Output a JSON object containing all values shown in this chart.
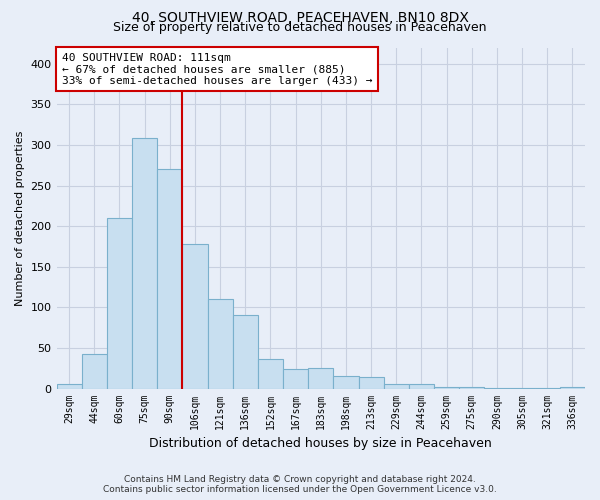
{
  "title": "40, SOUTHVIEW ROAD, PEACEHAVEN, BN10 8DX",
  "subtitle": "Size of property relative to detached houses in Peacehaven",
  "xlabel": "Distribution of detached houses by size in Peacehaven",
  "ylabel": "Number of detached properties",
  "bar_labels": [
    "29sqm",
    "44sqm",
    "60sqm",
    "75sqm",
    "90sqm",
    "106sqm",
    "121sqm",
    "136sqm",
    "152sqm",
    "167sqm",
    "183sqm",
    "198sqm",
    "213sqm",
    "229sqm",
    "244sqm",
    "259sqm",
    "275sqm",
    "290sqm",
    "305sqm",
    "321sqm",
    "336sqm"
  ],
  "bar_values": [
    5,
    42,
    210,
    308,
    270,
    178,
    110,
    90,
    37,
    24,
    25,
    16,
    14,
    5,
    6,
    2,
    2,
    1,
    1,
    1,
    2
  ],
  "bar_color": "#c8dff0",
  "bar_edge_color": "#7ab0cc",
  "vline_x_index": 4.5,
  "vline_color": "#cc0000",
  "annotation_title": "40 SOUTHVIEW ROAD: 111sqm",
  "annotation_line1": "← 67% of detached houses are smaller (885)",
  "annotation_line2": "33% of semi-detached houses are larger (433) →",
  "annotation_box_facecolor": "#ffffff",
  "annotation_box_edgecolor": "#cc0000",
  "ylim": [
    0,
    420
  ],
  "yticks": [
    0,
    50,
    100,
    150,
    200,
    250,
    300,
    350,
    400
  ],
  "footer1": "Contains HM Land Registry data © Crown copyright and database right 2024.",
  "footer2": "Contains public sector information licensed under the Open Government Licence v3.0.",
  "bg_color": "#e8eef8",
  "grid_color": "#c8d0e0",
  "title_fontsize": 10,
  "subtitle_fontsize": 9
}
